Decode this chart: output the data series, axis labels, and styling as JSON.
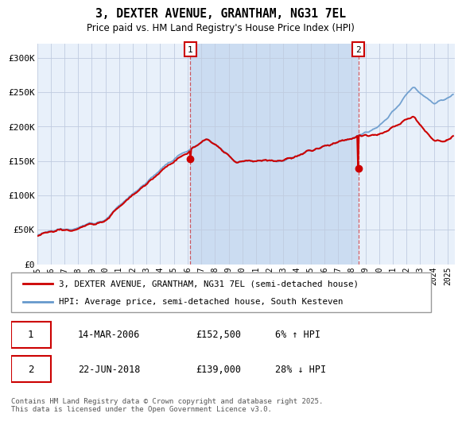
{
  "title_line1": "3, DEXTER AVENUE, GRANTHAM, NG31 7EL",
  "title_line2": "Price paid vs. HM Land Registry's House Price Index (HPI)",
  "background_color": "#dce8f5",
  "plot_bg_color": "#e8f0fa",
  "grid_color": "#c0cce0",
  "red_color": "#cc0000",
  "blue_color": "#6699cc",
  "shading_color": "#c8daf0",
  "ylim": [
    0,
    320000
  ],
  "yticks": [
    0,
    50000,
    100000,
    150000,
    200000,
    250000,
    300000
  ],
  "ytick_labels": [
    "£0",
    "£50K",
    "£100K",
    "£150K",
    "£200K",
    "£250K",
    "£300K"
  ],
  "legend_label_red": "3, DEXTER AVENUE, GRANTHAM, NG31 7EL (semi-detached house)",
  "legend_label_blue": "HPI: Average price, semi-detached house, South Kesteven",
  "annotation1_date": "14-MAR-2006",
  "annotation1_price": "£152,500",
  "annotation1_hpi": "6% ↑ HPI",
  "annotation2_date": "22-JUN-2018",
  "annotation2_price": "£139,000",
  "annotation2_hpi": "28% ↓ HPI",
  "footer": "Contains HM Land Registry data © Crown copyright and database right 2025.\nThis data is licensed under the Open Government Licence v3.0.",
  "sale1_x": 2006.2,
  "sale1_y": 152500,
  "sale2_x": 2018.47,
  "sale2_y": 139000,
  "xmin": 1995,
  "xmax": 2025.5,
  "xtick_years": [
    1995,
    1996,
    1997,
    1998,
    1999,
    2000,
    2001,
    2002,
    2003,
    2004,
    2005,
    2006,
    2007,
    2008,
    2009,
    2010,
    2011,
    2012,
    2013,
    2014,
    2015,
    2016,
    2017,
    2018,
    2019,
    2020,
    2021,
    2022,
    2023,
    2024,
    2025
  ]
}
